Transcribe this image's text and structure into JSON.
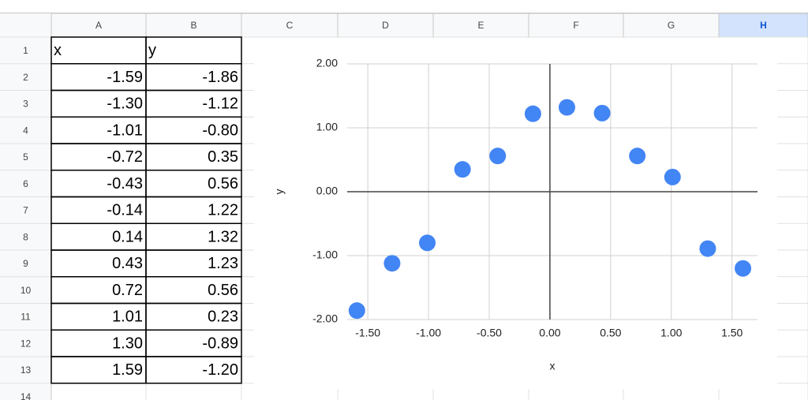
{
  "spreadsheet": {
    "columns": [
      "A",
      "B",
      "C",
      "D",
      "E",
      "F",
      "G",
      "H"
    ],
    "row_numbers": [
      1,
      2,
      3,
      4,
      5,
      6,
      7,
      8,
      9,
      10,
      11,
      12,
      13,
      14
    ],
    "table": {
      "rows": [
        [
          "x",
          "y"
        ],
        [
          "-1.59",
          "-1.86"
        ],
        [
          "-1.30",
          "-1.12"
        ],
        [
          "-1.01",
          "-0.80"
        ],
        [
          "-0.72",
          "0.35"
        ],
        [
          "-0.43",
          "0.56"
        ],
        [
          "-0.14",
          "1.22"
        ],
        [
          "0.14",
          "1.32"
        ],
        [
          "0.43",
          "1.23"
        ],
        [
          "0.72",
          "0.56"
        ],
        [
          "1.01",
          "0.23"
        ],
        [
          "1.30",
          "-0.89"
        ],
        [
          "1.59",
          "-1.20"
        ]
      ]
    }
  },
  "chart_data": {
    "type": "scatter",
    "x_label": "x",
    "y_label": "y",
    "x": [
      -1.59,
      -1.3,
      -1.01,
      -0.72,
      -0.43,
      -0.14,
      0.14,
      0.43,
      0.72,
      1.01,
      1.3,
      1.59
    ],
    "values": [
      -1.86,
      -1.12,
      -0.8,
      0.35,
      0.56,
      1.22,
      1.32,
      1.23,
      0.56,
      0.23,
      -0.89,
      -1.2
    ],
    "color": "#4285f4",
    "xlim": [
      -1.67,
      1.71
    ],
    "xticks": [
      {
        "value": -1.5,
        "label": "-1.50"
      },
      {
        "value": -1,
        "label": "-1.00"
      },
      {
        "value": -0.5,
        "label": "-0.50"
      },
      {
        "value": 0,
        "label": "0.00"
      },
      {
        "value": 0.5,
        "label": "0.50"
      },
      {
        "value": 1,
        "label": "1.00"
      },
      {
        "value": 1.5,
        "label": "1.50"
      }
    ],
    "ylim": [
      -2,
      2
    ],
    "yticks": [
      {
        "value": -2,
        "label": "-2.00"
      },
      {
        "value": -1,
        "label": "-1.00"
      },
      {
        "value": 0,
        "label": "0.00"
      },
      {
        "value": 1,
        "label": "1.00"
      },
      {
        "value": 2,
        "label": "2.00"
      }
    ],
    "grid": true
  }
}
